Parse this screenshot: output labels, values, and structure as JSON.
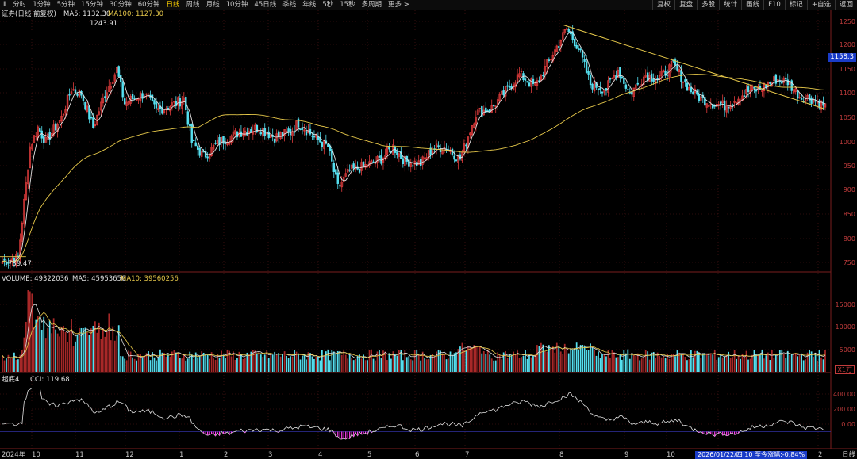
{
  "toolbar": {
    "tabs": [
      "Ⅱ",
      "分时",
      "1分钟",
      "5分钟",
      "15分钟",
      "30分钟",
      "60分钟",
      "日线",
      "周线",
      "月线",
      "10分钟",
      "45日线",
      "季线",
      "年线",
      "5秒",
      "15秒",
      "多周期",
      "更多 >"
    ],
    "active_index": 7,
    "right_tabs": [
      "复权",
      "复盘",
      "多股",
      "统计",
      "画线",
      "F10",
      "标记",
      "+自选",
      "返回"
    ]
  },
  "main_header": {
    "title": "证券(日线 前复权)",
    "ma5_label": "MA5: 1132.30",
    "ma100_label": "MA100: 1127.30"
  },
  "price_axis": {
    "ticks": [
      "1250",
      "1200",
      "1150",
      "1100",
      "1050",
      "1000",
      "950",
      "900",
      "850",
      "800",
      "750"
    ],
    "current_price": "1158.3"
  },
  "annotations": {
    "high": "1243.91",
    "low": "739.47"
  },
  "volume_header": {
    "title": "VOLUME: 49322036",
    "ma5_label": "MA5: 45953656",
    "ma10_label": "MA10: 39560256"
  },
  "volume_axis": {
    "ticks": [
      "15000",
      "10000",
      "5000"
    ],
    "unit": "X1万"
  },
  "cci_header": {
    "title": "超底4",
    "cci_label": "CCI: 119.68"
  },
  "cci_axis": {
    "ticks": [
      "400.00",
      "200.00",
      "0.00"
    ]
  },
  "x_axis": {
    "labels": [
      "2024年",
      "10",
      "11",
      "12",
      "1",
      "2",
      "3",
      "4",
      "5",
      "6",
      "7",
      "8",
      "9",
      "10",
      "11",
      "12",
      "1",
      "2"
    ]
  },
  "status_bar": {
    "text": "2026/01/22/四 10 至今涨幅:-0.84%",
    "period": "日线"
  },
  "colors": {
    "up": "#e23c3c",
    "down": "#55e0f0",
    "ma_white": "#e0e0e0",
    "ma_yellow": "#e6c84a",
    "cci_pink": "#ff3cf0",
    "axis_red": "#c23c3c"
  }
}
